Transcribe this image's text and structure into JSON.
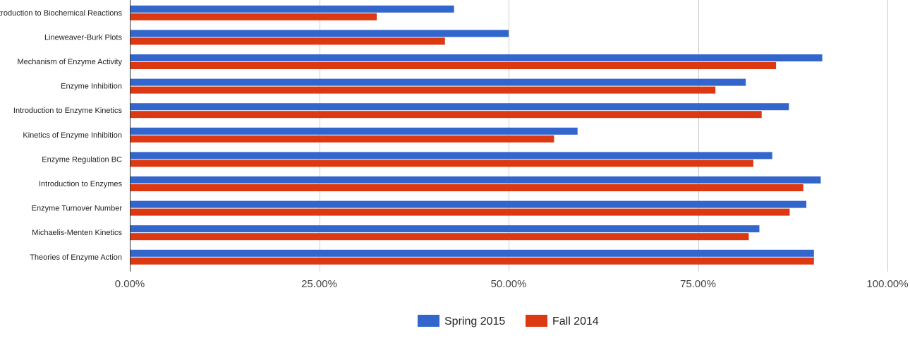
{
  "chart_data": {
    "type": "bar",
    "orientation": "horizontal",
    "categories": [
      "Introduction to Biochemical Reactions",
      "Lineweaver-Burk Plots",
      "Mechanism of Enzyme Activity",
      "Enzyme Inhibition",
      "Introduction to Enzyme Kinetics",
      "Kinetics of Enzyme Inhibition",
      "Enzyme Regulation BC",
      "Introduction to Enzymes",
      "Enzyme Turnover Number",
      "Michaelis-Menten Kinetics",
      "Theories of Enzyme Action"
    ],
    "series": [
      {
        "name": "Spring 2015",
        "color": "#3366cc",
        "values": [
          42.8,
          50.0,
          91.4,
          81.3,
          87.0,
          59.1,
          84.8,
          91.2,
          89.3,
          83.1,
          90.3
        ]
      },
      {
        "name": "Fall 2014",
        "color": "#dc3912",
        "values": [
          32.6,
          41.6,
          85.3,
          77.3,
          83.4,
          56.0,
          82.3,
          88.9,
          87.1,
          81.7,
          90.3
        ]
      }
    ],
    "xlim": [
      0,
      100
    ],
    "xticks": [
      0,
      25,
      50,
      75,
      100
    ],
    "xtick_labels": [
      "0.00%",
      "25.00%",
      "50.00%",
      "75.00%",
      "100.00%"
    ],
    "title": "",
    "xlabel": "",
    "ylabel": "",
    "grid": true,
    "legend_position": "bottom"
  }
}
